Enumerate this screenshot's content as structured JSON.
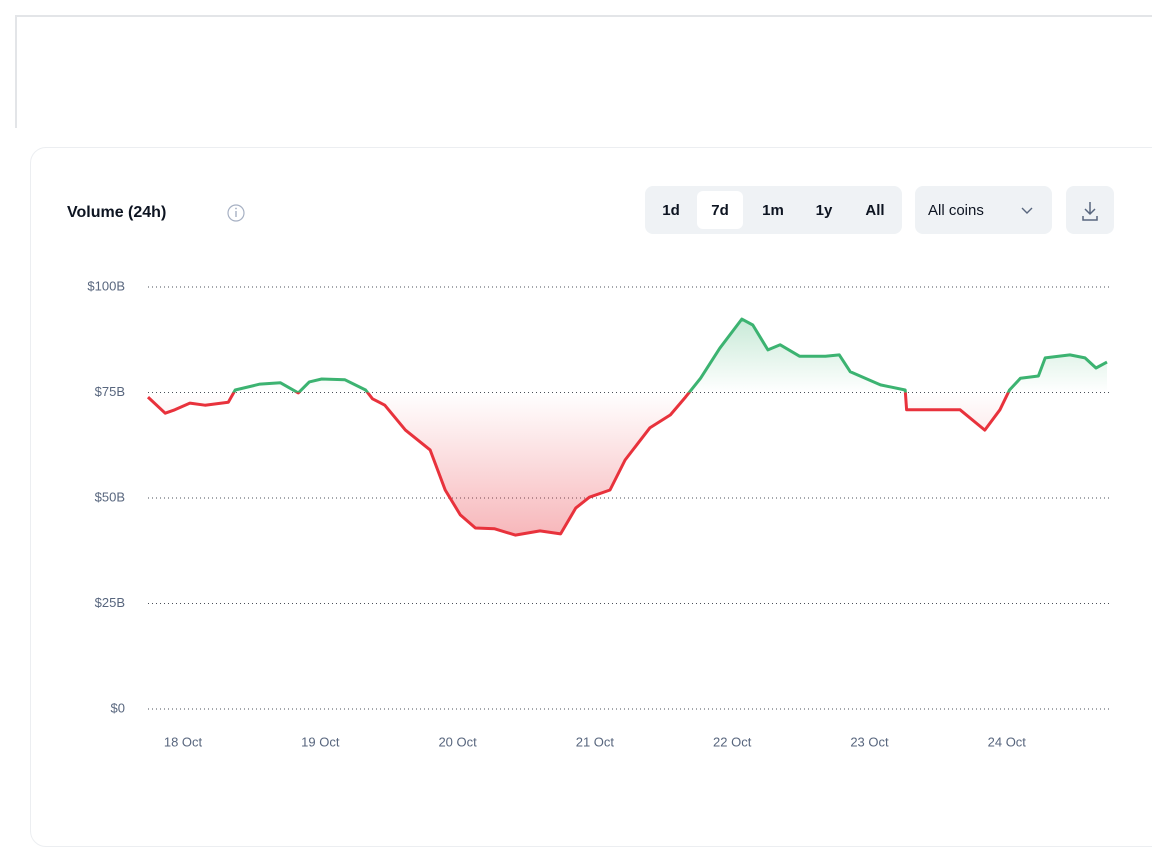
{
  "chart_data": {
    "type": "line",
    "title": "Volume (24h)",
    "x": [
      17.745,
      17.87,
      17.94,
      18.05,
      18.16,
      18.33,
      18.38,
      18.56,
      18.71,
      18.84,
      18.92,
      19.01,
      19.18,
      19.33,
      19.38,
      19.47,
      19.62,
      19.8,
      19.91,
      20.02,
      20.13,
      20.27,
      20.42,
      20.6,
      20.75,
      20.86,
      20.96,
      21.11,
      21.22,
      21.4,
      21.55,
      21.66,
      21.77,
      21.91,
      22.07,
      22.15,
      22.26,
      22.35,
      22.49,
      22.68,
      22.78,
      22.86,
      23.08,
      23.26,
      23.27,
      23.44,
      23.66,
      23.84,
      23.95,
      24.02,
      24.1,
      24.23,
      24.28,
      24.46,
      24.57,
      24.65,
      24.73
    ],
    "values": [
      73.9,
      70.1,
      70.9,
      72.5,
      72.0,
      72.7,
      75.6,
      77.0,
      77.3,
      74.9,
      77.5,
      78.2,
      78.0,
      75.6,
      73.5,
      72.0,
      66.1,
      61.4,
      51.9,
      46.0,
      42.9,
      42.7,
      41.2,
      42.2,
      41.5,
      47.6,
      50.2,
      51.9,
      59.0,
      66.6,
      69.7,
      73.9,
      78.4,
      85.5,
      92.4,
      91.0,
      85.1,
      86.3,
      83.6,
      83.6,
      83.9,
      79.9,
      76.8,
      75.6,
      70.9,
      70.9,
      70.9,
      66.1,
      70.9,
      75.6,
      78.4,
      78.9,
      83.2,
      83.9,
      83.2,
      80.8,
      82.2
    ],
    "baseline": 75,
    "up_color": "#3cb371",
    "down_color": "#e8323c",
    "xlim": [
      17.745,
      24.73
    ],
    "xticks": [
      {
        "value": 18,
        "label": "18 Oct"
      },
      {
        "value": 19,
        "label": "19 Oct"
      },
      {
        "value": 20,
        "label": "20 Oct"
      },
      {
        "value": 21,
        "label": "21 Oct"
      },
      {
        "value": 22,
        "label": "22 Oct"
      },
      {
        "value": 23,
        "label": "23 Oct"
      },
      {
        "value": 24,
        "label": "24 Oct"
      }
    ],
    "ylim": [
      0,
      100
    ],
    "yticks": [
      {
        "value": 0,
        "label": "$0"
      },
      {
        "value": 25,
        "label": "$25B"
      },
      {
        "value": 50,
        "label": "$50B"
      },
      {
        "value": 75,
        "label": "$75B"
      },
      {
        "value": 100,
        "label": "$100B"
      }
    ],
    "grid": true
  },
  "controls": {
    "ranges": [
      "1d",
      "7d",
      "1m",
      "1y",
      "All"
    ],
    "selected_range": 1,
    "coins": "All coins"
  }
}
